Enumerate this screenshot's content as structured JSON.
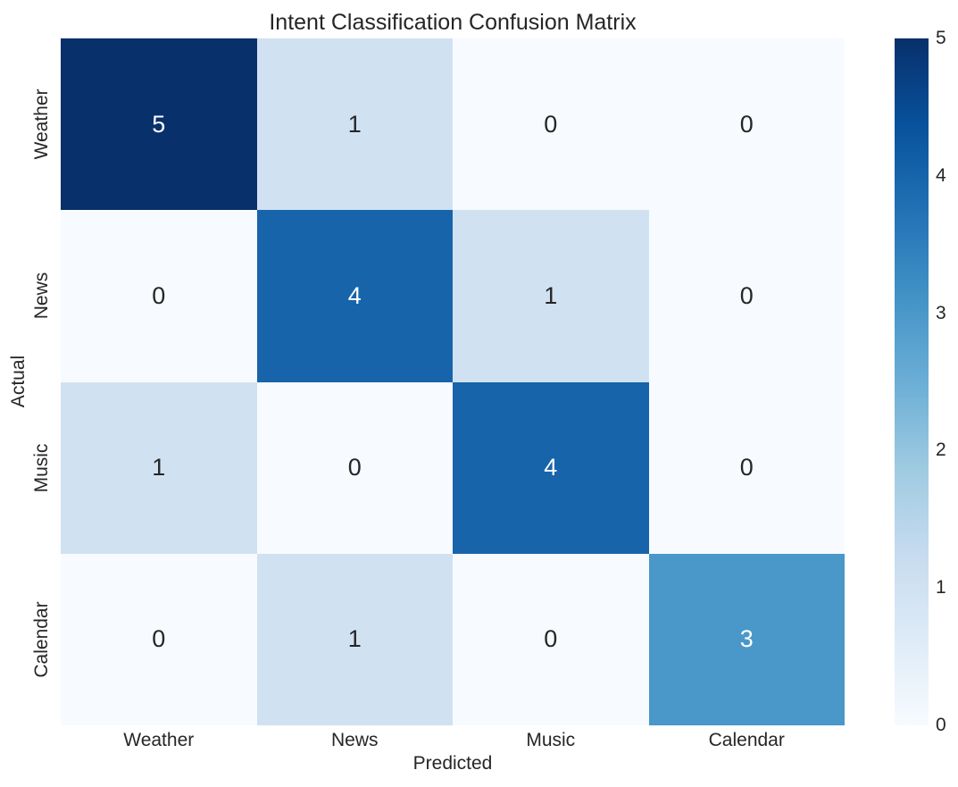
{
  "chart_data": {
    "type": "heatmap",
    "title": "Intent Classification Confusion Matrix",
    "xlabel": "Predicted",
    "ylabel": "Actual",
    "x_categories": [
      "Weather",
      "News",
      "Music",
      "Calendar"
    ],
    "y_categories": [
      "Weather",
      "News",
      "Music",
      "Calendar"
    ],
    "values": [
      [
        5,
        1,
        0,
        0
      ],
      [
        0,
        4,
        1,
        0
      ],
      [
        1,
        0,
        4,
        0
      ],
      [
        0,
        1,
        0,
        3
      ]
    ],
    "vmin": 0,
    "vmax": 5,
    "colormap": "Blues",
    "colormap_stops": [
      "#f7fbff",
      "#deebf7",
      "#c6dbef",
      "#9ecae1",
      "#6baed6",
      "#4292c6",
      "#2171b5",
      "#08519c",
      "#08306b"
    ],
    "colorbar_ticks": [
      0,
      1,
      2,
      3,
      4,
      5
    ],
    "colorbar_position": "right",
    "grid": false,
    "background": "#ffffff",
    "text_color": "#262626",
    "annotation_color_dark": "#262626",
    "annotation_color_light": "#ffffff"
  }
}
